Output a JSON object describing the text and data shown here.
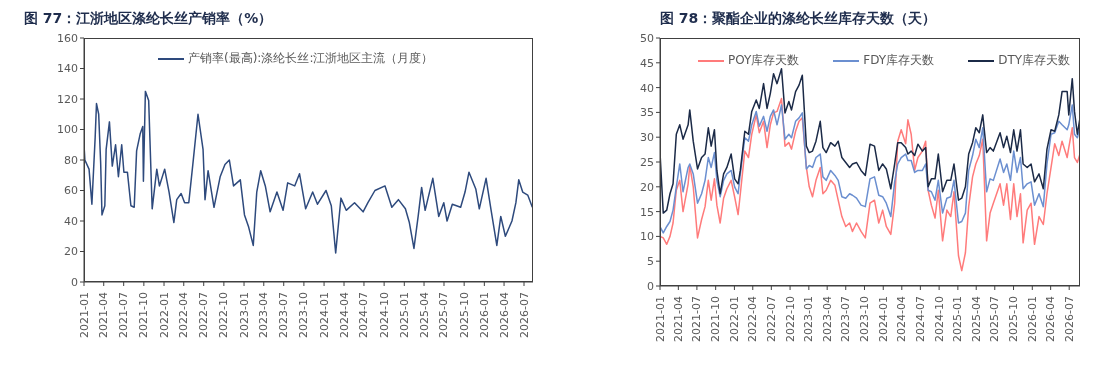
{
  "chart_data": [
    {
      "type": "line",
      "title": "图 77：江浙地区涤纶长丝产销率（%）",
      "legend": "top",
      "xlim": [
        "2021-01-01",
        "2026-08-11"
      ],
      "xticks": [
        "2021-01",
        "2021-04",
        "2021-07",
        "2021-10",
        "2022-01",
        "2022-04",
        "2022-07",
        "2022-10",
        "2023-01",
        "2023-04",
        "2023-07",
        "2023-10",
        "2024-01",
        "2024-04",
        "2024-07",
        "2024-10",
        "2025-01",
        "2025-04",
        "2025-07",
        "2025-10",
        "2026-01",
        "2026-04",
        "2026-07"
      ],
      "ylim": [
        0,
        160
      ],
      "yticks": [
        0,
        20,
        40,
        60,
        80,
        100,
        120,
        140,
        160
      ],
      "series": [
        {
          "name": "产销率(最高):涤纶长丝:江浙地区主流（月度）",
          "color": "#2e4a7d",
          "x": [
            "2021-01-01",
            "2021-01-05",
            "2021-01-24",
            "2021-02-06",
            "2021-02-21",
            "2021-02-27",
            "2021-03-09",
            "2021-03-18",
            "2021-03-24",
            "2021-04-06",
            "2021-04-12",
            "2021-04-27",
            "2021-05-10",
            "2021-05-25",
            "2021-06-07",
            "2021-06-22",
            "2021-07-02",
            "2021-07-18",
            "2021-08-03",
            "2021-08-18",
            "2021-08-29",
            "2021-09-14",
            "2021-09-26",
            "2021-09-29",
            "2021-10-08",
            "2021-10-23",
            "2021-11-08",
            "2021-11-29",
            "2021-12-11",
            "2022-01-04",
            "2022-01-24",
            "2022-02-15",
            "2022-02-28",
            "2022-03-20",
            "2022-04-05",
            "2022-04-24",
            "2022-05-13",
            "2022-06-05",
            "2022-06-28",
            "2022-07-07",
            "2022-07-21",
            "2022-08-17",
            "2022-09-14",
            "2022-10-06",
            "2022-10-26",
            "2022-11-14",
            "2022-12-15",
            "2023-01-03",
            "2023-01-22",
            "2023-02-12",
            "2023-02-28",
            "2023-03-18",
            "2023-04-08",
            "2023-04-30",
            "2023-05-31",
            "2023-06-28",
            "2023-07-19",
            "2023-08-20",
            "2023-09-11",
            "2023-10-09",
            "2023-11-10",
            "2023-12-02",
            "2024-01-10",
            "2024-02-03",
            "2024-02-23",
            "2024-03-18",
            "2024-04-11",
            "2024-05-19",
            "2024-06-27",
            "2024-07-19",
            "2024-08-20",
            "2024-10-05",
            "2024-11-05",
            "2024-12-05",
            "2025-01-06",
            "2025-01-24",
            "2025-02-14",
            "2025-03-06",
            "2025-03-21",
            "2025-04-06",
            "2025-05-11",
            "2025-06-07",
            "2025-06-30",
            "2025-07-15",
            "2025-08-08",
            "2025-09-15",
            "2025-10-05",
            "2025-10-23",
            "2025-11-23",
            "2025-12-09",
            "2026-01-09",
            "2026-02-01",
            "2026-02-27",
            "2026-03-17",
            "2026-04-07",
            "2026-05-07",
            "2026-05-25",
            "2026-06-07",
            "2026-06-25",
            "2026-07-18",
            "2026-08-08"
          ],
          "values": [
            90,
            80,
            74,
            51,
            95,
            117,
            110,
            78,
            44,
            50,
            87,
            105,
            76,
            90,
            69,
            90,
            72,
            72,
            50,
            49,
            86,
            97,
            102,
            66,
            125,
            119,
            48,
            74,
            63,
            74,
            59,
            39,
            54,
            58,
            52,
            52,
            78,
            110,
            87,
            54,
            73,
            49,
            69,
            77,
            80,
            63,
            67,
            44,
            36,
            24,
            59,
            73,
            63,
            46,
            59,
            47,
            65,
            63,
            71,
            48,
            59,
            51,
            60,
            50,
            19,
            55,
            47,
            52,
            46,
            52,
            60,
            63,
            49,
            54,
            48,
            39,
            22,
            44,
            62,
            47,
            68,
            43,
            52,
            40,
            51,
            49,
            59,
            72,
            61,
            48,
            68,
            47,
            24,
            43,
            30,
            40,
            52,
            67,
            59,
            57,
            49
          ]
        }
      ]
    },
    {
      "type": "line",
      "title": "图 78：聚酯企业的涤纶长丝库存天数（天）",
      "legend": "top",
      "xlim": [
        "2021-01-01",
        "2026-08-23"
      ],
      "xticks": [
        "2021-01",
        "2021-04",
        "2021-07",
        "2021-10",
        "2022-01",
        "2022-04",
        "2022-07",
        "2022-10",
        "2023-01",
        "2023-04",
        "2023-07",
        "2023-10",
        "2024-01",
        "2024-04",
        "2024-07",
        "2024-10",
        "2025-01",
        "2025-04",
        "2025-07",
        "2025-10",
        "2026-01",
        "2026-04",
        "2026-07"
      ],
      "ylim": [
        0,
        50
      ],
      "yticks": [
        0,
        5,
        10,
        15,
        20,
        25,
        30,
        35,
        40,
        45,
        50
      ],
      "series": [
        {
          "name": "POY库存天数",
          "color": "#ff7b7b",
          "x": [
            "2021-01-01",
            "2021-01-17",
            "2021-02-03",
            "2021-02-19",
            "2021-03-06",
            "2021-03-22",
            "2021-04-08",
            "2021-04-24",
            "2021-05-19",
            "2021-05-27",
            "2021-06-13",
            "2021-07-04",
            "2021-07-24",
            "2021-08-10",
            "2021-08-26",
            "2021-09-09",
            "2021-09-25",
            "2021-10-07",
            "2021-10-23",
            "2021-11-09",
            "2021-11-25",
            "2021-12-16",
            "2022-01-02",
            "2022-01-19",
            "2022-01-30",
            "2022-02-21",
            "2022-03-11",
            "2022-03-27",
            "2022-04-18",
            "2022-05-03",
            "2022-05-24",
            "2022-06-10",
            "2022-06-26",
            "2022-07-12",
            "2022-07-29",
            "2022-08-20",
            "2022-09-06",
            "2022-09-25",
            "2022-10-08",
            "2022-10-28",
            "2022-11-14",
            "2022-11-30",
            "2022-12-20",
            "2023-01-03",
            "2023-01-19",
            "2023-02-05",
            "2023-02-26",
            "2023-03-11",
            "2023-03-27",
            "2023-04-18",
            "2023-05-09",
            "2023-05-25",
            "2023-06-12",
            "2023-07-01",
            "2023-07-20",
            "2023-08-03",
            "2023-08-23",
            "2023-09-14",
            "2023-10-05",
            "2023-10-28",
            "2023-11-19",
            "2023-12-10",
            "2023-12-29",
            "2024-01-16",
            "2024-02-07",
            "2024-02-26",
            "2024-03-12",
            "2024-03-29",
            "2024-04-20",
            "2024-05-01",
            "2024-05-17",
            "2024-06-03",
            "2024-06-19",
            "2024-07-11",
            "2024-07-27",
            "2024-08-08",
            "2024-08-24",
            "2024-09-11",
            "2024-09-27",
            "2024-10-18",
            "2024-11-08",
            "2024-11-27",
            "2024-12-13",
            "2025-01-04",
            "2025-01-20",
            "2025-02-07",
            "2025-02-23",
            "2025-03-14",
            "2025-03-30",
            "2025-04-16",
            "2025-05-03",
            "2025-05-22",
            "2025-06-08",
            "2025-06-24",
            "2025-07-27",
            "2025-08-13",
            "2025-08-29",
            "2025-09-16",
            "2025-10-02",
            "2025-10-18",
            "2025-11-04",
            "2025-11-17",
            "2025-12-07",
            "2025-12-26",
            "2026-01-12",
            "2026-02-03",
            "2026-02-24",
            "2026-03-14",
            "2026-04-03",
            "2026-04-21",
            "2026-05-11",
            "2026-05-27",
            "2026-06-21",
            "2026-06-29",
            "2026-07-16",
            "2026-07-27",
            "2026-08-10",
            "2026-08-23"
          ],
          "values": [
            10,
            9.7,
            8.4,
            10,
            12.7,
            19.3,
            21.3,
            15,
            20.6,
            24.3,
            20,
            9.7,
            13.4,
            16,
            21.3,
            17.3,
            21.6,
            16.3,
            12.7,
            17.7,
            19.6,
            21.3,
            18,
            14.4,
            18.6,
            27.2,
            25.9,
            30.6,
            34.5,
            30.9,
            33.2,
            27.9,
            32.5,
            34.9,
            35.2,
            37.8,
            28.2,
            28.9,
            27.6,
            31.2,
            33.2,
            33.9,
            23.9,
            20,
            18,
            21.3,
            23.9,
            18.6,
            19.3,
            21.3,
            20.3,
            17.3,
            14,
            12,
            12.7,
            11,
            12.7,
            11,
            9.7,
            16.7,
            17.3,
            12.7,
            15.3,
            12,
            10.4,
            16.7,
            29.2,
            31.5,
            28.7,
            33.5,
            30.6,
            23.3,
            25.9,
            27.2,
            29.2,
            19.3,
            16.3,
            13.7,
            19.3,
            9.1,
            15.3,
            14,
            19,
            6.1,
            3.1,
            6.7,
            16,
            22,
            24.6,
            26.3,
            29.6,
            9.1,
            14.7,
            16.7,
            20.6,
            16.3,
            20.6,
            13.4,
            20.6,
            14,
            18.6,
            8.7,
            15.3,
            16.7,
            8.4,
            14,
            12.4,
            18.6,
            23.9,
            28.7,
            26.3,
            29.2,
            25.9,
            27.9,
            31.9,
            25.9,
            24.9,
            26.6
          ]
        },
        {
          "name": "FDY库存天数",
          "color": "#6b8fd0",
          "x": [
            "2021-01-01",
            "2021-01-17",
            "2021-02-03",
            "2021-02-19",
            "2021-03-06",
            "2021-03-22",
            "2021-04-08",
            "2021-04-24",
            "2021-05-19",
            "2021-05-27",
            "2021-06-13",
            "2021-07-04",
            "2021-07-24",
            "2021-08-10",
            "2021-08-26",
            "2021-09-09",
            "2021-09-25",
            "2021-10-07",
            "2021-10-23",
            "2021-11-09",
            "2021-11-25",
            "2021-12-16",
            "2022-01-02",
            "2022-01-19",
            "2022-01-30",
            "2022-02-21",
            "2022-03-11",
            "2022-03-27",
            "2022-04-18",
            "2022-05-03",
            "2022-05-24",
            "2022-06-10",
            "2022-06-26",
            "2022-07-12",
            "2022-07-29",
            "2022-08-20",
            "2022-09-06",
            "2022-09-25",
            "2022-10-08",
            "2022-10-28",
            "2022-11-14",
            "2022-11-30",
            "2022-12-20",
            "2023-01-03",
            "2023-01-19",
            "2023-02-05",
            "2023-02-26",
            "2023-03-11",
            "2023-03-27",
            "2023-04-18",
            "2023-05-09",
            "2023-05-25",
            "2023-06-12",
            "2023-07-01",
            "2023-07-20",
            "2023-08-03",
            "2023-08-23",
            "2023-09-14",
            "2023-10-05",
            "2023-10-28",
            "2023-11-19",
            "2023-12-10",
            "2023-12-29",
            "2024-01-16",
            "2024-02-07",
            "2024-02-26",
            "2024-03-12",
            "2024-03-29",
            "2024-04-20",
            "2024-05-01",
            "2024-05-17",
            "2024-06-03",
            "2024-06-19",
            "2024-07-11",
            "2024-07-27",
            "2024-08-08",
            "2024-08-24",
            "2024-09-11",
            "2024-09-27",
            "2024-10-18",
            "2024-11-08",
            "2024-11-27",
            "2024-12-13",
            "2025-01-04",
            "2025-01-20",
            "2025-02-07",
            "2025-02-23",
            "2025-03-14",
            "2025-03-30",
            "2025-04-16",
            "2025-05-03",
            "2025-05-22",
            "2025-06-08",
            "2025-06-24",
            "2025-07-27",
            "2025-08-13",
            "2025-08-29",
            "2025-09-16",
            "2025-10-02",
            "2025-10-18",
            "2025-11-04",
            "2025-11-17",
            "2025-12-07",
            "2025-12-26",
            "2026-01-12",
            "2026-02-03",
            "2026-02-24",
            "2026-03-14",
            "2026-04-03",
            "2026-04-21",
            "2026-05-11",
            "2026-05-27",
            "2026-06-21",
            "2026-06-29",
            "2026-07-16",
            "2026-07-27",
            "2026-08-10",
            "2026-08-23"
          ],
          "values": [
            12,
            10.7,
            12,
            13,
            15.3,
            20,
            24.6,
            19,
            23.9,
            24.6,
            22.6,
            16.7,
            18.6,
            21.3,
            25.9,
            23.9,
            26.9,
            21.3,
            18,
            21.3,
            22.6,
            23.3,
            20,
            18.6,
            22.6,
            29.9,
            29.2,
            32.5,
            35.2,
            32.2,
            34.2,
            31.2,
            34.2,
            35.5,
            32.5,
            36.5,
            29.6,
            30.6,
            29.9,
            33.2,
            33.9,
            34.9,
            23.6,
            24.3,
            23.9,
            25.9,
            26.6,
            22,
            21.3,
            23.3,
            22.3,
            21.3,
            18,
            17.7,
            18.6,
            18.3,
            17.7,
            16.3,
            16,
            21.6,
            22,
            18.3,
            18,
            16.7,
            14,
            21,
            24.6,
            25.9,
            26.6,
            25.3,
            25.3,
            22.9,
            23.3,
            23.3,
            24.6,
            19.3,
            19,
            17.3,
            21.3,
            14.7,
            17.7,
            18,
            21.3,
            12.7,
            13,
            14.7,
            23.3,
            26.3,
            29.6,
            27.9,
            31.9,
            19,
            21.6,
            21.3,
            25.6,
            22.9,
            24.6,
            21.3,
            27.2,
            22.9,
            25.9,
            19.6,
            20.6,
            21,
            16.3,
            18.6,
            16,
            24.6,
            30.6,
            30.9,
            33.2,
            32.5,
            31.5,
            32.5,
            36.5,
            30.6,
            29.9,
            31.9
          ]
        },
        {
          "name": "DTY库存天数",
          "color": "#1b2a47",
          "x": [
            "2021-01-01",
            "2021-01-17",
            "2021-02-03",
            "2021-02-19",
            "2021-03-06",
            "2021-03-22",
            "2021-04-08",
            "2021-04-24",
            "2021-05-19",
            "2021-05-27",
            "2021-06-13",
            "2021-07-04",
            "2021-07-24",
            "2021-08-10",
            "2021-08-26",
            "2021-09-09",
            "2021-09-25",
            "2021-10-07",
            "2021-10-23",
            "2021-11-09",
            "2021-11-25",
            "2021-12-16",
            "2022-01-02",
            "2022-01-19",
            "2022-01-30",
            "2022-02-21",
            "2022-03-11",
            "2022-03-27",
            "2022-04-18",
            "2022-05-03",
            "2022-05-24",
            "2022-06-10",
            "2022-06-26",
            "2022-07-12",
            "2022-07-29",
            "2022-08-20",
            "2022-09-06",
            "2022-09-25",
            "2022-10-08",
            "2022-10-28",
            "2022-11-14",
            "2022-11-30",
            "2022-12-20",
            "2023-01-03",
            "2023-01-19",
            "2023-02-05",
            "2023-02-26",
            "2023-03-11",
            "2023-03-27",
            "2023-04-18",
            "2023-05-09",
            "2023-05-25",
            "2023-06-12",
            "2023-07-01",
            "2023-07-20",
            "2023-08-03",
            "2023-08-23",
            "2023-09-14",
            "2023-10-05",
            "2023-10-28",
            "2023-11-19",
            "2023-12-10",
            "2023-12-29",
            "2024-01-16",
            "2024-02-07",
            "2024-02-26",
            "2024-03-12",
            "2024-03-29",
            "2024-04-20",
            "2024-05-01",
            "2024-05-17",
            "2024-06-03",
            "2024-06-19",
            "2024-07-11",
            "2024-07-27",
            "2024-08-08",
            "2024-08-24",
            "2024-09-11",
            "2024-09-27",
            "2024-10-18",
            "2024-11-08",
            "2024-11-27",
            "2024-12-13",
            "2025-01-04",
            "2025-01-20",
            "2025-02-07",
            "2025-02-23",
            "2025-03-14",
            "2025-03-30",
            "2025-04-16",
            "2025-05-03",
            "2025-05-22",
            "2025-06-08",
            "2025-06-24",
            "2025-07-27",
            "2025-08-13",
            "2025-08-29",
            "2025-09-16",
            "2025-10-02",
            "2025-10-18",
            "2025-11-04",
            "2025-11-17",
            "2025-12-07",
            "2025-12-26",
            "2026-01-12",
            "2026-02-03",
            "2026-02-24",
            "2026-03-14",
            "2026-04-03",
            "2026-04-21",
            "2026-05-11",
            "2026-05-27",
            "2026-06-21",
            "2026-06-29",
            "2026-07-16",
            "2026-07-27",
            "2026-08-10",
            "2026-08-23"
          ],
          "values": [
            26.9,
            14.7,
            15.3,
            18.6,
            20.6,
            30.6,
            32.5,
            29.6,
            32.5,
            35.5,
            29.2,
            23.6,
            25.9,
            26.6,
            31.9,
            28.2,
            31.5,
            23.3,
            18.6,
            22.6,
            23.9,
            26.6,
            21.6,
            20.6,
            23.3,
            31.2,
            30.6,
            35.2,
            37.5,
            35.8,
            40.8,
            35.8,
            38.8,
            42.8,
            40.8,
            43.8,
            34.9,
            37.2,
            35.5,
            39.2,
            40.5,
            42.5,
            28.2,
            26.9,
            27.2,
            29.2,
            33.2,
            27.9,
            26.9,
            28.9,
            28.2,
            29.2,
            25.9,
            24.9,
            23.9,
            24.6,
            24.9,
            23.3,
            22.3,
            28.6,
            28.2,
            23.3,
            24.6,
            23.6,
            19.6,
            24.6,
            28.9,
            28.9,
            27.9,
            26.6,
            27.2,
            26.3,
            28.6,
            27.2,
            27.9,
            20,
            21.6,
            21.6,
            26.6,
            19,
            21.3,
            21.3,
            24.6,
            17.3,
            17.7,
            20,
            26.6,
            28.9,
            31.9,
            30.9,
            34.5,
            26.9,
            27.9,
            27.2,
            30.9,
            27.9,
            30.2,
            26.9,
            31.5,
            27.2,
            31.5,
            24.6,
            23.9,
            24.6,
            21,
            22.6,
            19.6,
            27.6,
            31.5,
            31.2,
            34.5,
            39.2,
            39.2,
            34.5,
            41.8,
            35.2,
            30.6,
            33.9
          ]
        }
      ]
    }
  ]
}
